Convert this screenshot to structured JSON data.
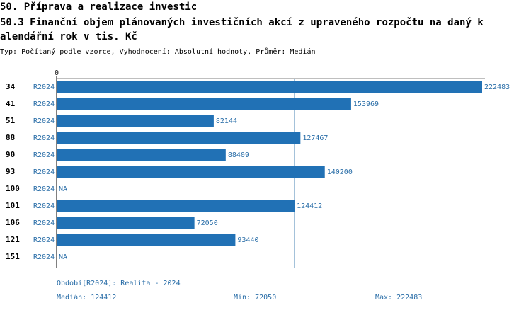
{
  "chart_data": {
    "type": "bar",
    "orientation": "horizontal",
    "title": "50. Příprava a realizace investic",
    "subtitle_lines": [
      "50.3 Finanční objem plánovaných investičních akcí z upraveného rozpočtu na daný k",
      "alendářní rok v tis. Kč"
    ],
    "note": "Typ: Počítaný podle vzorce, Vyhodnocení: Absolutní hodnoty, Průměr: Medián",
    "categories": [
      "34",
      "41",
      "51",
      "88",
      "90",
      "93",
      "100",
      "101",
      "106",
      "121",
      "151"
    ],
    "series": [
      {
        "name": "R2024",
        "color": "#2171b5",
        "values": [
          222483,
          153969,
          82144,
          127467,
          88409,
          140200,
          null,
          124412,
          72050,
          93440,
          null
        ],
        "value_labels": [
          "222483",
          "153969",
          "82144",
          "127467",
          "88409",
          "140200",
          "NA",
          "124412",
          "72050",
          "93440",
          "NA"
        ]
      }
    ],
    "xlim": [
      0,
      222483
    ],
    "xticks": [
      0
    ],
    "period_note": "Období[R2024]: Realita - 2024",
    "median_label": "Medián:",
    "median": 124412,
    "min_label": "Min:",
    "min": 72050,
    "max_label": "Max:",
    "max": 222483
  }
}
